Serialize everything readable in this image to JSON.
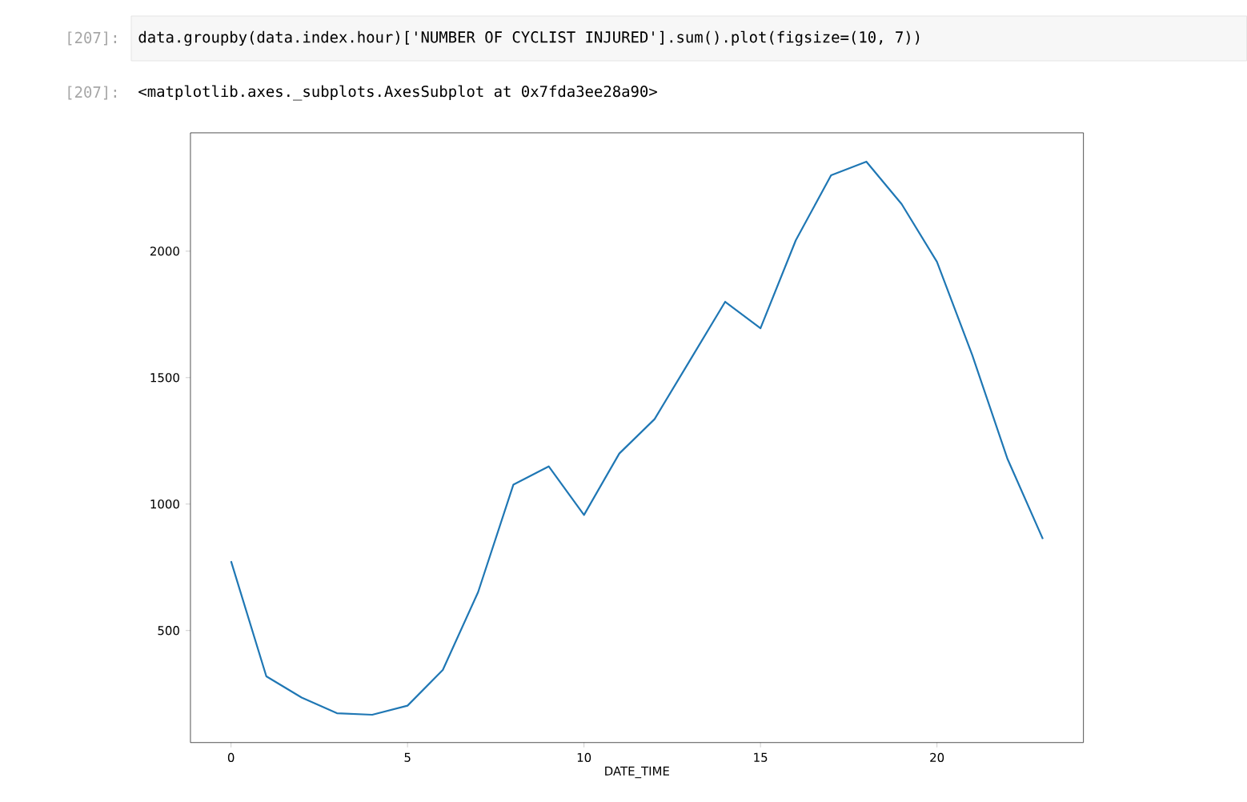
{
  "chart_data": {
    "type": "line",
    "xlabel": "DATE_TIME",
    "x": [
      0,
      1,
      2,
      3,
      4,
      5,
      6,
      7,
      8,
      9,
      10,
      11,
      12,
      13,
      14,
      15,
      16,
      17,
      18,
      19,
      20,
      21,
      22,
      23
    ],
    "values": [
      774,
      319,
      235,
      173,
      167,
      203,
      344,
      652,
      1077,
      1149,
      957,
      1200,
      1336,
      1568,
      1800,
      1695,
      2043,
      2300,
      2354,
      2186,
      1958,
      1589,
      1178,
      862
    ],
    "color": "#1f77b4",
    "xlim": [
      -1.15,
      24.15
    ],
    "xticks": [
      0,
      5,
      10,
      15,
      20
    ],
    "ylim": [
      57,
      2468
    ],
    "yticks": [
      500,
      1000,
      1500,
      2000
    ],
    "annotations": [
      "[207]:",
      "data.groupby(data.index.hour)['NUMBER OF CYCLIST INJURED'].sum().plot(figsize=(10, 7))",
      "[207]:",
      "<matplotlib.axes._subplots.AxesSubplot at 0x7fda3ee28a90>"
    ]
  }
}
